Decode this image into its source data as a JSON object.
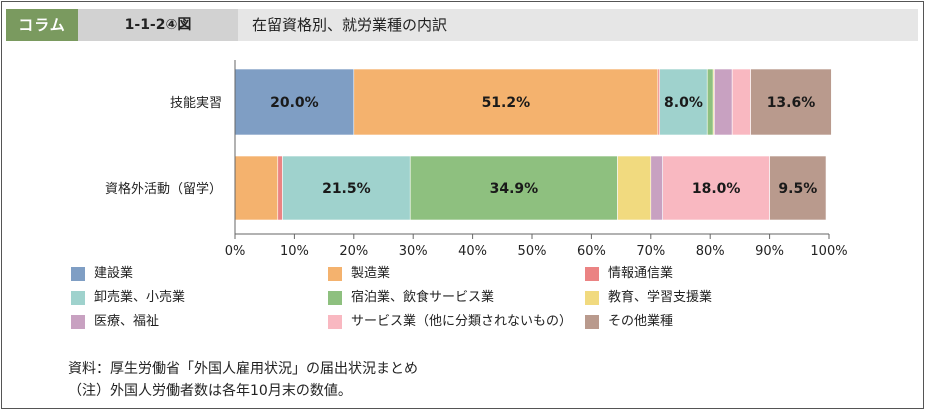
{
  "header": {
    "tag": "コラム",
    "figure_number": "1-1-2④図",
    "title": "在留資格別、就労業種の内訳"
  },
  "colors": {
    "header_tag": "#7a9a5f",
    "series": [
      "#7f9ec4",
      "#f4b26e",
      "#eb8383",
      "#9fd2cd",
      "#8ec07f",
      "#f1da7f",
      "#c8a1c1",
      "#f9b8c1",
      "#b99a8d"
    ]
  },
  "chart_data": {
    "type": "bar",
    "orientation": "horizontal",
    "stacked": true,
    "categories": [
      "技能実習",
      "資格外活動（留学）"
    ],
    "xlim": [
      0,
      100
    ],
    "x_ticks": [
      "0%",
      "10%",
      "20%",
      "30%",
      "40%",
      "50%",
      "60%",
      "70%",
      "80%",
      "90%",
      "100%"
    ],
    "series": [
      {
        "name": "建設業",
        "values": [
          20.0,
          0.0
        ],
        "labels": [
          "20.0%",
          ""
        ]
      },
      {
        "name": "製造業",
        "values": [
          51.2,
          7.2
        ],
        "labels": [
          "51.2%",
          ""
        ]
      },
      {
        "name": "情報通信業",
        "values": [
          0.3,
          0.8
        ],
        "labels": [
          "",
          ""
        ]
      },
      {
        "name": "卸売業、小売業",
        "values": [
          8.0,
          21.5
        ],
        "labels": [
          "8.0%",
          "21.5%"
        ]
      },
      {
        "name": "宿泊業、飲食サービス業",
        "values": [
          1.0,
          34.9
        ],
        "labels": [
          "",
          "34.9%"
        ]
      },
      {
        "name": "教育、学習支援業",
        "values": [
          0.2,
          5.6
        ],
        "labels": [
          "",
          ""
        ]
      },
      {
        "name": "医療、福祉",
        "values": [
          3.0,
          2.0
        ],
        "labels": [
          "",
          ""
        ]
      },
      {
        "name": "サービス業（他に分類されないもの）",
        "values": [
          3.1,
          18.0
        ],
        "labels": [
          "",
          "18.0%"
        ]
      },
      {
        "name": "その他業種",
        "values": [
          13.6,
          9.5
        ],
        "labels": [
          "13.6%",
          "9.5%"
        ]
      }
    ],
    "legend_position": "bottom",
    "grid": false
  },
  "notes": [
    "資料：厚生労働省「外国人雇用状況」の届出状況まとめ",
    "（注）外国人労働者数は各年10月末の数値。"
  ]
}
